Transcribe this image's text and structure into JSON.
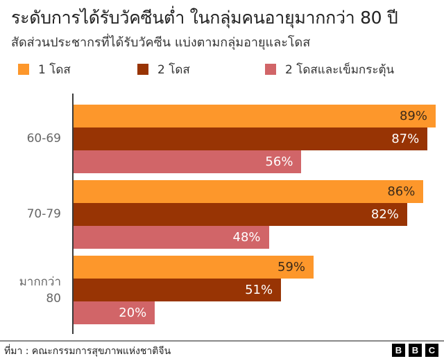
{
  "header": {
    "title": "ระดับการได้รับวัคซีนต่ำ ในกลุ่มคนอายุมากกว่า 80 ปี",
    "subtitle": "สัดส่วนประชากรที่ได้รับวัคซีน แบ่งตามกลุ่มอายุและโดส"
  },
  "legend": [
    {
      "label": "1 โดส",
      "color": "#fd972b"
    },
    {
      "label": "2 โดส",
      "color": "#983404"
    },
    {
      "label": "2 โดสและเข็มกระตุ้น",
      "color": "#d16568"
    }
  ],
  "groups": [
    {
      "label": "60-69",
      "bars": [
        {
          "value": 89,
          "text": "89%"
        },
        {
          "value": 87,
          "text": "87%"
        },
        {
          "value": 56,
          "text": "56%"
        }
      ]
    },
    {
      "label": "70-79",
      "bars": [
        {
          "value": 86,
          "text": "86%"
        },
        {
          "value": 82,
          "text": "82%"
        },
        {
          "value": 48,
          "text": "48%"
        }
      ]
    },
    {
      "label": "มากกว่า 80",
      "label_lines": [
        "มากกว่า",
        "80"
      ],
      "bars": [
        {
          "value": 59,
          "text": "59%"
        },
        {
          "value": 51,
          "text": "51%"
        },
        {
          "value": 20,
          "text": "20%"
        }
      ]
    }
  ],
  "label_colors": [
    "#3b2a1a",
    "#ffffff",
    "#ffffff"
  ],
  "footer": {
    "source": "ที่มา : คณะกรรมการสุขภาพแห่งชาติจีน",
    "logo": [
      "B",
      "B",
      "C"
    ]
  },
  "chart_data": {
    "type": "bar",
    "orientation": "horizontal",
    "title": "ระดับการได้รับวัคซีนต่ำ ในกลุ่มคนอายุมากกว่า 80 ปี",
    "subtitle": "สัดส่วนประชากรที่ได้รับวัคซีน แบ่งตามกลุ่มอายุและโดส",
    "categories": [
      "60-69",
      "70-79",
      "มากกว่า 80"
    ],
    "series": [
      {
        "name": "1 โดส",
        "color": "#fd972b",
        "values": [
          89,
          86,
          59
        ]
      },
      {
        "name": "2 โดส",
        "color": "#983404",
        "values": [
          87,
          82,
          51
        ]
      },
      {
        "name": "2 โดสและเข็มกระตุ้น",
        "color": "#d16568",
        "values": [
          56,
          48,
          20
        ]
      }
    ],
    "xlabel": "",
    "ylabel": "",
    "xlim": [
      0,
      100
    ],
    "unit": "%",
    "grid": false,
    "legend_position": "top",
    "data_labels": true,
    "source": "ที่มา : คณะกรรมการสุขภาพแห่งชาติจีน"
  }
}
